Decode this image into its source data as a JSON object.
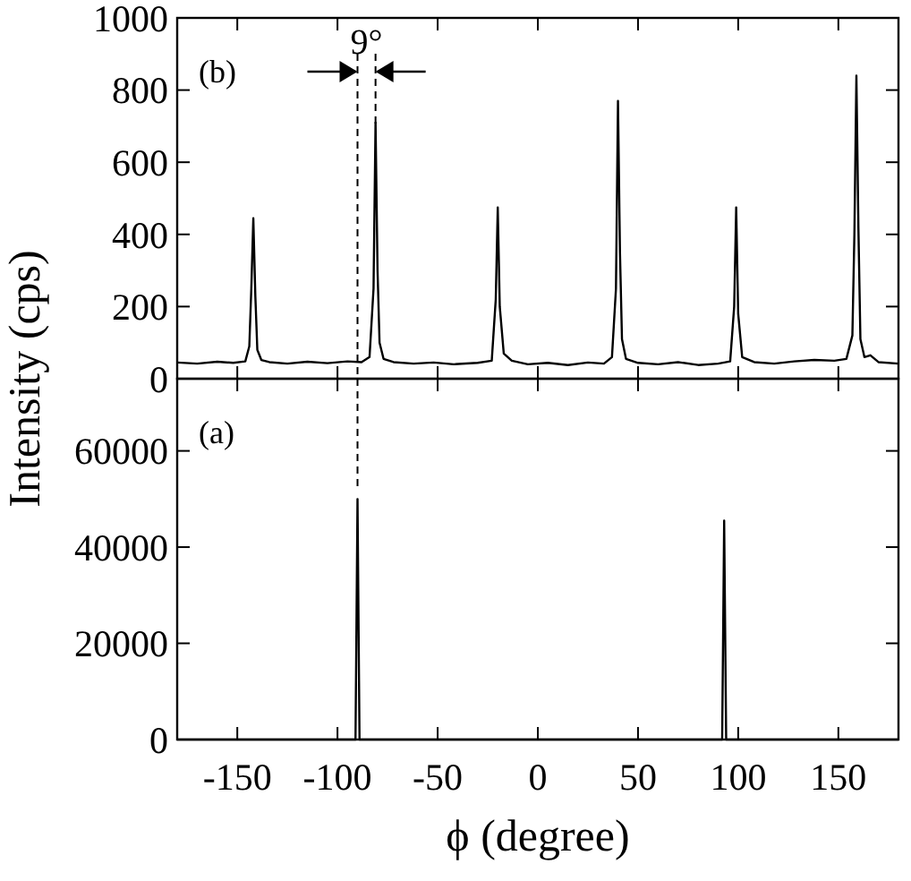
{
  "chart_data": [
    {
      "type": "line",
      "ylabel": "Intensity (cps)",
      "xlim": [
        -180,
        180
      ],
      "ylim": [
        0,
        1000
      ],
      "yticks": [
        0,
        200,
        400,
        600,
        800,
        1000
      ],
      "xticks": [
        -150,
        -100,
        -50,
        0,
        50,
        100,
        150
      ],
      "tick_labels": "y",
      "annotations": [
        "(b)",
        "9°"
      ],
      "ref_lines": [
        {
          "axis": "x",
          "value": -90,
          "line_style": "dashed"
        },
        {
          "axis": "x",
          "value": -81,
          "line_style": "dashed"
        }
      ],
      "series": [
        {
          "color": "#000000",
          "x": [
            -180,
            -170,
            -160,
            -152,
            -146,
            -144,
            -143,
            -142,
            -141,
            -140,
            -138,
            -134,
            -125,
            -115,
            -105,
            -95,
            -88,
            -84,
            -82,
            -81,
            -80,
            -79,
            -77,
            -72,
            -62,
            -52,
            -42,
            -30,
            -23,
            -21,
            -20,
            -19,
            -17,
            -13,
            -5,
            5,
            15,
            25,
            33,
            37,
            39,
            40,
            41,
            42,
            44,
            50,
            60,
            70,
            80,
            90,
            96,
            98,
            99,
            100,
            102,
            108,
            118,
            128,
            138,
            148,
            154,
            157,
            158,
            159,
            160,
            161,
            163,
            166,
            170,
            180
          ],
          "values": [
            45,
            42,
            47,
            44,
            48,
            90,
            250,
            445,
            230,
            80,
            52,
            46,
            42,
            47,
            43,
            48,
            46,
            60,
            250,
            710,
            300,
            100,
            55,
            46,
            42,
            45,
            40,
            44,
            50,
            220,
            475,
            200,
            70,
            50,
            40,
            44,
            38,
            45,
            42,
            60,
            250,
            770,
            350,
            110,
            55,
            44,
            40,
            46,
            38,
            42,
            48,
            200,
            475,
            180,
            60,
            46,
            42,
            48,
            52,
            50,
            55,
            120,
            400,
            840,
            420,
            110,
            60,
            65,
            46,
            42
          ]
        }
      ]
    },
    {
      "type": "line",
      "xlabel": "ϕ (degree)",
      "xlim": [
        -180,
        180
      ],
      "ylim": [
        0,
        75000
      ],
      "yticks": [
        0,
        20000,
        40000,
        60000
      ],
      "xticks": [
        -150,
        -100,
        -50,
        0,
        50,
        100,
        150
      ],
      "annotations": [
        "(a)"
      ],
      "ref_lines": [
        {
          "axis": "x",
          "value": -90,
          "line_style": "dashed"
        }
      ],
      "series": [
        {
          "color": "#000000",
          "x": [
            -180,
            -91,
            -90,
            -89,
            92,
            93,
            94,
            180
          ],
          "values": [
            0,
            0,
            50000,
            0,
            0,
            45500,
            0,
            0
          ]
        }
      ]
    }
  ]
}
